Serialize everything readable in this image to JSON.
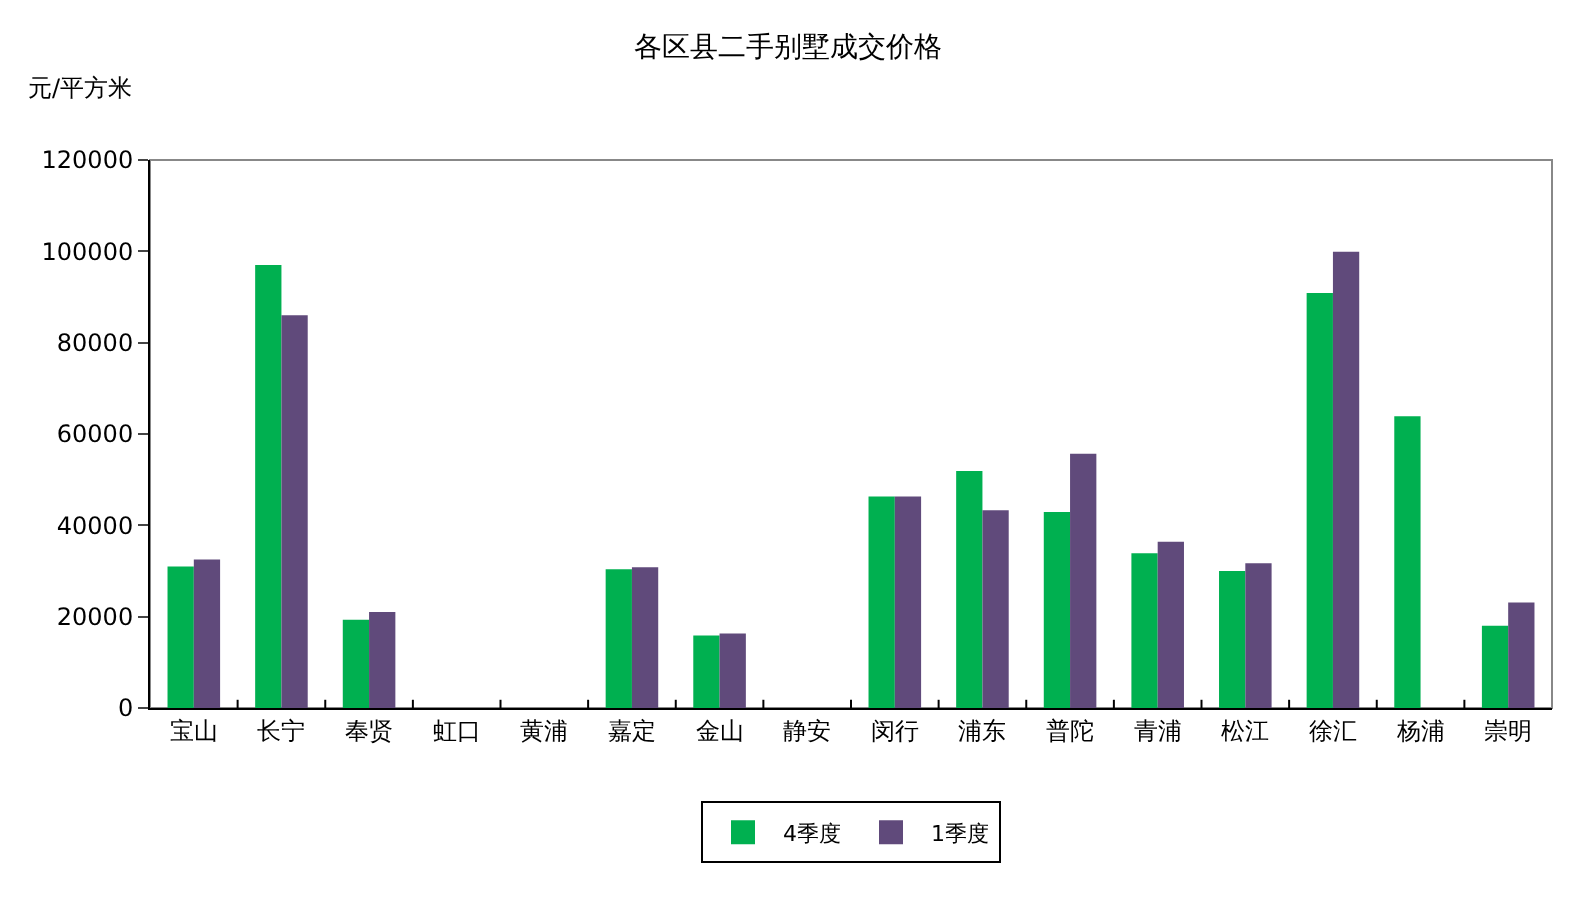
{
  "chart_data": {
    "type": "bar",
    "title": "各区县二手别墅成交价格",
    "ylabel": "元/平方米",
    "categories": [
      "宝山",
      "长宁",
      "奉贤",
      "虹口",
      "黄浦",
      "嘉定",
      "金山",
      "静安",
      "闵行",
      "浦东",
      "普陀",
      "青浦",
      "松江",
      "徐汇",
      "杨浦",
      "崇明"
    ],
    "series": [
      {
        "name": "4季度",
        "color": "#00b050",
        "values": [
          31000,
          97000,
          19300,
          null,
          null,
          30400,
          15900,
          null,
          46300,
          51900,
          42900,
          33900,
          30000,
          90900,
          63900,
          18000
        ]
      },
      {
        "name": "1季度",
        "color": "#604a7b",
        "values": [
          32500,
          86000,
          21000,
          null,
          null,
          30800,
          16300,
          null,
          46300,
          43300,
          55700,
          36400,
          31700,
          99900,
          null,
          23100
        ]
      }
    ],
    "ylim": [
      0,
      120000
    ],
    "yticks": [
      0,
      20000,
      40000,
      60000,
      80000,
      100000,
      120000
    ],
    "grid": false,
    "legend": "bottom"
  }
}
